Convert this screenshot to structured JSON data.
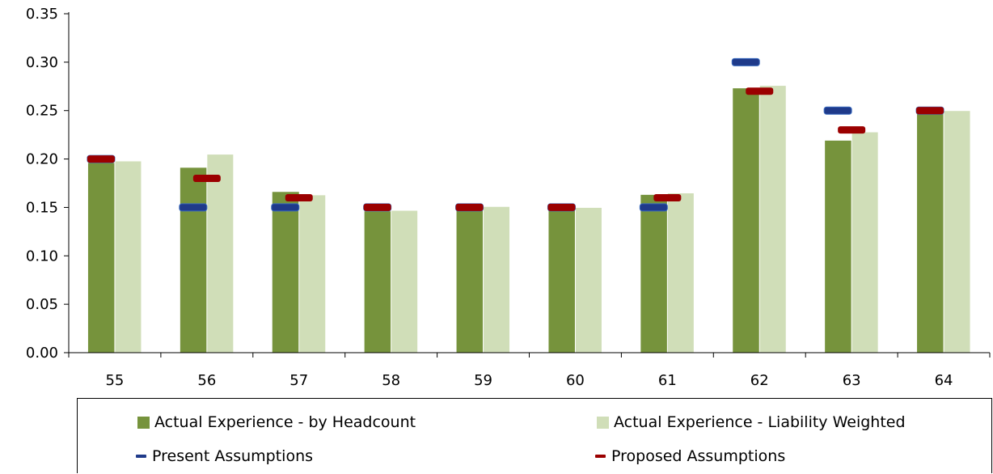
{
  "chart_data": {
    "type": "bar",
    "categories": [
      "55",
      "56",
      "57",
      "58",
      "59",
      "60",
      "61",
      "62",
      "63",
      "64"
    ],
    "series": [
      {
        "name": "Actual Experience - by Headcount",
        "values": [
          0.196,
          0.191,
          0.166,
          0.146,
          0.147,
          0.152,
          0.163,
          0.273,
          0.219,
          0.248
        ]
      },
      {
        "name": "Actual Experience - Liability Weighted",
        "values": [
          0.198,
          0.205,
          0.163,
          0.147,
          0.151,
          0.15,
          0.165,
          0.276,
          0.228,
          0.25
        ]
      }
    ],
    "markers": [
      {
        "name": "Present Assumptions",
        "values": [
          0.2,
          0.15,
          0.15,
          0.15,
          0.15,
          0.15,
          0.15,
          0.3,
          0.25,
          0.25
        ]
      },
      {
        "name": "Proposed Assumptions",
        "values": [
          0.2,
          0.18,
          0.16,
          0.15,
          0.15,
          0.15,
          0.16,
          0.27,
          0.23,
          0.25
        ]
      }
    ],
    "y_ticks": [
      "0.00",
      "0.05",
      "0.10",
      "0.15",
      "0.20",
      "0.25",
      "0.30",
      "0.35"
    ],
    "ylim": [
      0,
      0.35
    ],
    "legend_position": "bottom",
    "colors": {
      "headcount": "#76933C",
      "liability": "#D0DEB8",
      "present": "#1F3A8A",
      "proposed": "#9B0000"
    }
  }
}
